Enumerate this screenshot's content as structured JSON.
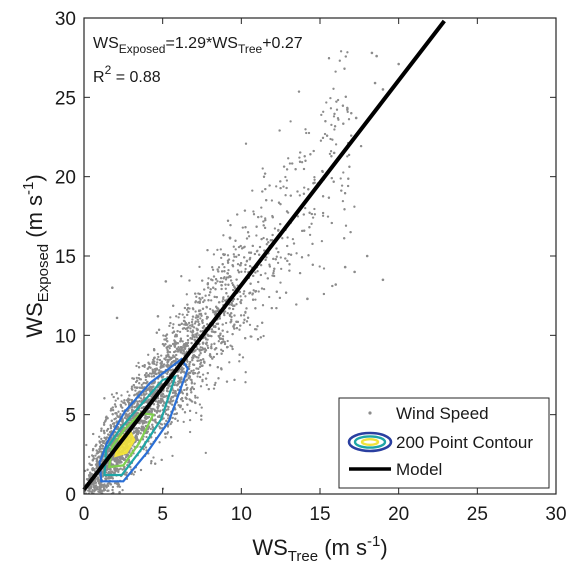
{
  "chart_data": {
    "type": "scatter",
    "x_axis": {
      "label_main": "WS",
      "label_sub": "Tree",
      "label_units": " (m s",
      "label_units_exp": "-1",
      "label_units_close": ")",
      "range": [
        0,
        30
      ],
      "ticks": [
        0,
        5,
        10,
        15,
        20,
        25,
        30
      ]
    },
    "y_axis": {
      "label_main": "WS",
      "label_sub": "Exposed",
      "label_units": " (m s",
      "label_units_exp": "-1",
      "label_units_close": ")",
      "range": [
        0,
        30
      ],
      "ticks": [
        0,
        5,
        10,
        15,
        20,
        25,
        30
      ]
    },
    "annotations": {
      "equation_lhs_main": "WS",
      "equation_lhs_sub": "Exposed",
      "equation_mid": "=1.29*WS",
      "equation_rhs_sub": "Tree",
      "equation_tail": "+0.27",
      "r2_main": "R",
      "r2_sup": "2",
      "r2_value": " = 0.88"
    },
    "model": {
      "slope": 1.29,
      "intercept": 0.27,
      "x_range": [
        0,
        22.9
      ]
    },
    "series": [
      {
        "name": "Wind Speed",
        "kind": "points",
        "color": "#8c8c8c",
        "approx_count": 4200,
        "note_points": "dense cloud along the model line; representative outliers listed",
        "outliers": [
          [
            18.3,
            27.8
          ],
          [
            18.6,
            27.6
          ],
          [
            20.0,
            27.1
          ],
          [
            19.0,
            25.5
          ],
          [
            18.5,
            25.9
          ],
          [
            17.3,
            23.7
          ],
          [
            15.9,
            21.5
          ],
          [
            4.7,
            11.2
          ],
          [
            1.8,
            13.0
          ],
          [
            5.2,
            13.4
          ],
          [
            2.1,
            11.1
          ],
          [
            16.6,
            14.3
          ],
          [
            17.2,
            14.0
          ],
          [
            19.0,
            13.5
          ],
          [
            18.0,
            15.0
          ],
          [
            16.0,
            13.2
          ],
          [
            14.2,
            12.3
          ]
        ]
      },
      {
        "name": "200 Point Contour",
        "kind": "contour",
        "colors": [
          "#2a6fd6",
          "#1fa6a6",
          "#7fd04f",
          "#f2e33a"
        ]
      },
      {
        "name": "Model",
        "kind": "line",
        "color": "#000000"
      }
    ],
    "legend": {
      "position": "bottom-right",
      "entries": [
        "Wind Speed",
        "200 Point Contour",
        "Model"
      ]
    },
    "grid": false
  }
}
